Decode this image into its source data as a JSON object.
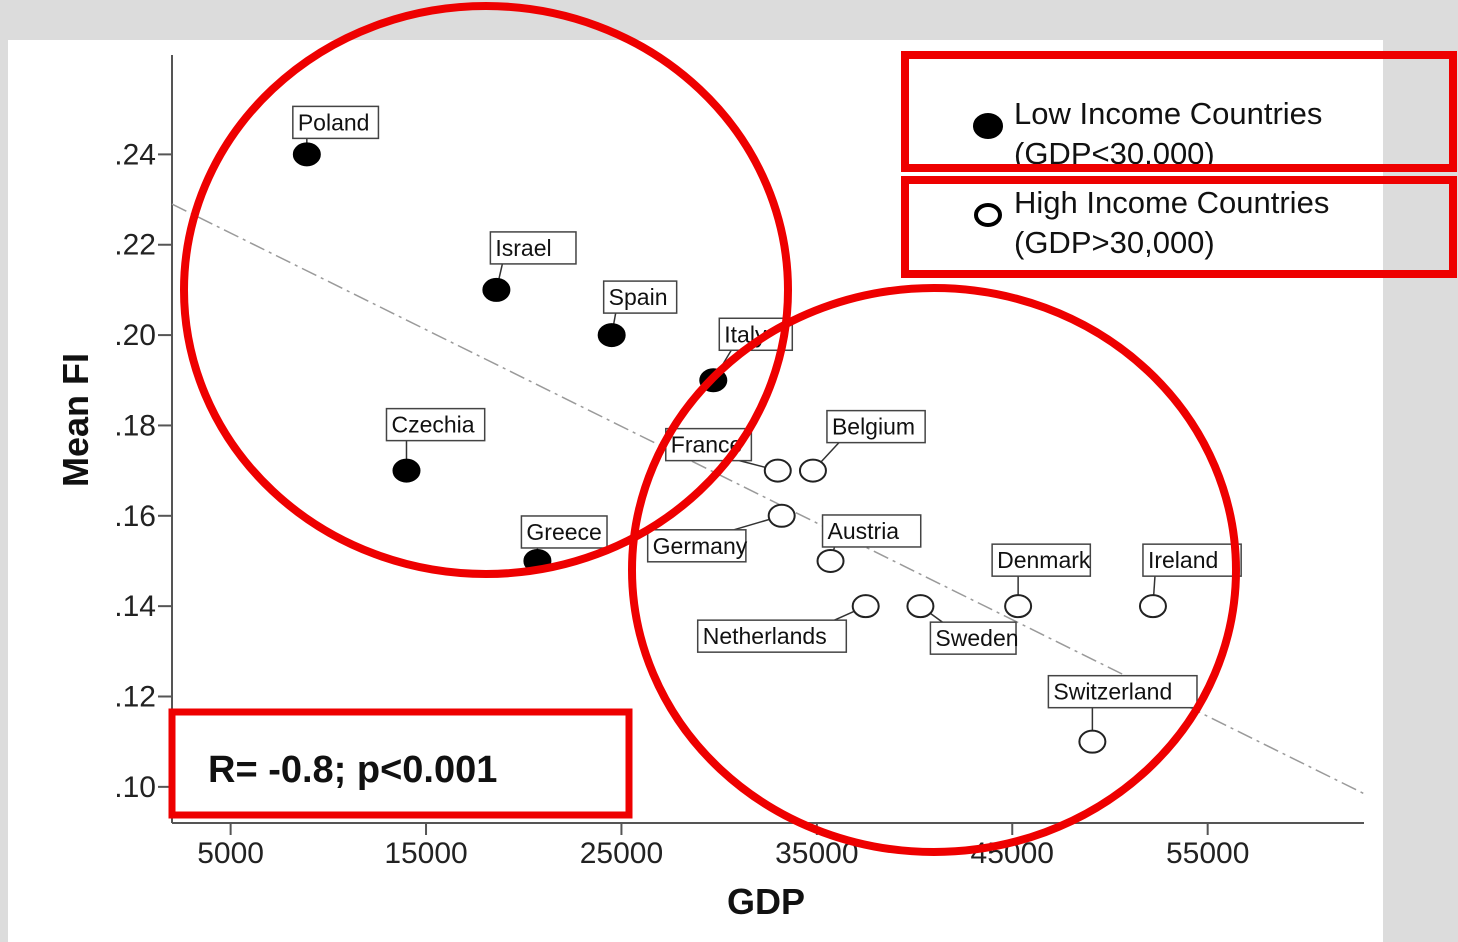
{
  "chart_data": {
    "type": "scatter",
    "xlabel": "GDP",
    "ylabel": "Mean FI",
    "xlim": [
      2000,
      63000
    ],
    "ylim": [
      0.092,
      0.262
    ],
    "x_ticks": [
      {
        "value": 5000,
        "label": "5000"
      },
      {
        "value": 15000,
        "label": "15000"
      },
      {
        "value": 25000,
        "label": "25000"
      },
      {
        "value": 35000,
        "label": "35000"
      },
      {
        "value": 45000,
        "label": "45000"
      },
      {
        "value": 55000,
        "label": "55000"
      }
    ],
    "y_ticks": [
      {
        "value": 0.1,
        "label": ".10"
      },
      {
        "value": 0.12,
        "label": ".12"
      },
      {
        "value": 0.14,
        "label": ".14"
      },
      {
        "value": 0.16,
        "label": ".16"
      },
      {
        "value": 0.18,
        "label": ".18"
      },
      {
        "value": 0.2,
        "label": ".20"
      },
      {
        "value": 0.22,
        "label": ".22"
      },
      {
        "value": 0.24,
        "label": ".24"
      }
    ],
    "fit_line": {
      "x": [
        2000,
        63000
      ],
      "y": [
        0.229,
        0.0985
      ]
    },
    "series": [
      {
        "name": "Low Income  Countries (GDP<30,000)",
        "marker": "filled",
        "points": [
          {
            "label": "Poland",
            "x": 8900,
            "y": 0.24
          },
          {
            "label": "Israel",
            "x": 18600,
            "y": 0.21
          },
          {
            "label": "Spain",
            "x": 24500,
            "y": 0.2
          },
          {
            "label": "Italy",
            "x": 29700,
            "y": 0.19
          },
          {
            "label": "Czechia",
            "x": 14000,
            "y": 0.17
          },
          {
            "label": "Greece",
            "x": 20700,
            "y": 0.15
          }
        ]
      },
      {
        "name": "High Income Countries (GDP>30,000)",
        "marker": "hollow",
        "points": [
          {
            "label": "France",
            "x": 33000,
            "y": 0.17
          },
          {
            "label": "Belgium",
            "x": 34800,
            "y": 0.17
          },
          {
            "label": "Germany",
            "x": 33200,
            "y": 0.16
          },
          {
            "label": "Austria",
            "x": 35700,
            "y": 0.15
          },
          {
            "label": "Netherlands",
            "x": 37500,
            "y": 0.14
          },
          {
            "label": "Sweden",
            "x": 40300,
            "y": 0.14
          },
          {
            "label": "Denmark",
            "x": 45300,
            "y": 0.14
          },
          {
            "label": "Ireland",
            "x": 52200,
            "y": 0.14
          },
          {
            "label": "Switzerland",
            "x": 49100,
            "y": 0.11
          }
        ]
      }
    ],
    "legend": {
      "position": "top-right",
      "entries": [
        {
          "line1": "Low Income  Countries",
          "line2": "(GDP<30,000)",
          "marker": "filled"
        },
        {
          "line1": "High Income Countries",
          "line2": "(GDP>30,000)",
          "marker": "hollow"
        }
      ]
    },
    "annotation": "R= -0.8; p<0.001",
    "grid": false
  },
  "colors": {
    "highlight": "#ee0000",
    "marker": "#000000",
    "fit_line": "#9a9a9a",
    "axis": "#555555"
  }
}
